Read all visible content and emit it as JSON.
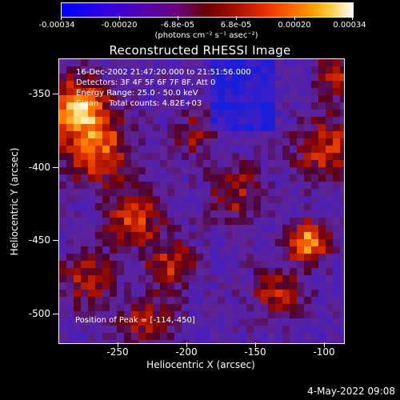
{
  "colorbar": {
    "tick_labels": [
      "-0.00034",
      "-0.00020",
      "-6.8e-05",
      "6.8e-05",
      "0.00020",
      "0.00034"
    ],
    "units": "(photons cm⁻² s⁻¹ asec⁻²)",
    "colors": [
      "#0000ff",
      "#6a007a",
      "#a81000",
      "#ff6000",
      "#ffd050",
      "#ffffff"
    ]
  },
  "title": "Reconstructed RHESSI Image",
  "info": {
    "time_range": "16-Dec-2002 21:47:20.000 to 21:51:56.000",
    "detectors": "Detectors: 3F 4F 5F 6F 7F 8F, Att 0",
    "energy": "Energy Range: 25.0 - 50.0 keV",
    "clean": "Clean    Total counts: 4.82E+03"
  },
  "peak": "Position of Peak = [-114,-450]",
  "x_axis": {
    "label": "Heliocentric X (arcsec)",
    "ticks": [
      "-250",
      "-200",
      "-150",
      "-100"
    ]
  },
  "y_axis": {
    "label": "Heliocentric Y (arcsec)",
    "ticks": [
      "-350",
      "-400",
      "-450",
      "-500"
    ]
  },
  "footer": "4-May-2022 09:08"
}
